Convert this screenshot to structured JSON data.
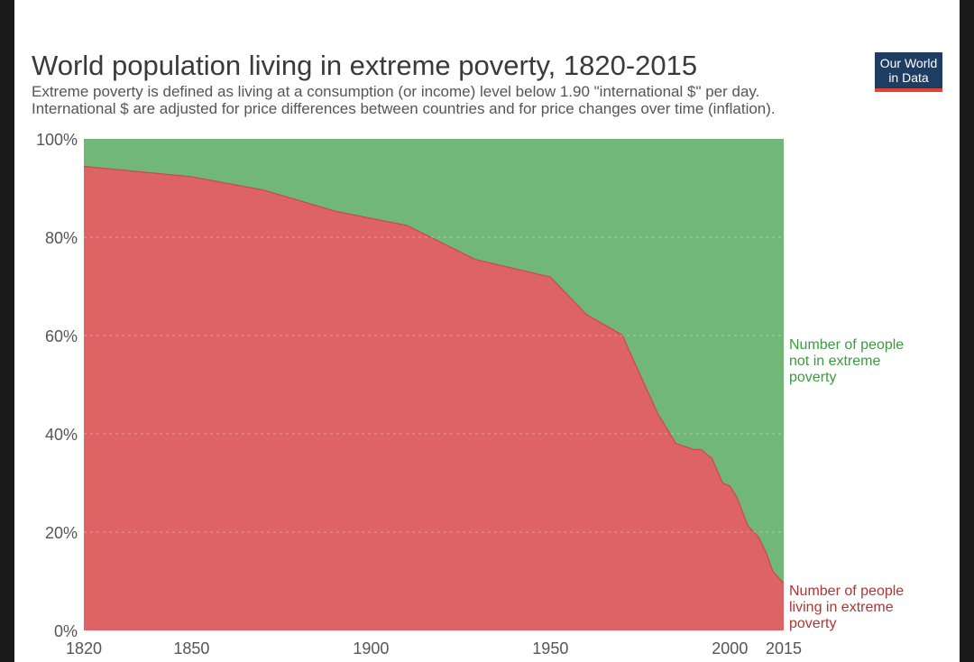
{
  "title": "World population living in extreme poverty, 1820-2015",
  "subtitle_line1": "Extreme poverty is defined as living at a consumption (or income) level below 1.90 \"international $\" per day.",
  "subtitle_line2": "International $ are adjusted for price differences between countries and for price changes over time (inflation).",
  "logo": {
    "line1": "Our World",
    "line2": "in Data"
  },
  "colors": {
    "poverty": "#dd6364",
    "poverty_line": "#c94a4a",
    "not_poverty": "#71b878",
    "not_poverty_label": "#3c9a3f",
    "poverty_label": "#b23432",
    "logo_bg": "#1d3d63",
    "logo_accent": "#e0433b"
  },
  "chart_data": {
    "type": "area",
    "stacked": true,
    "title": "World population living in extreme poverty, 1820-2015",
    "xlim": [
      1820,
      2015
    ],
    "ylim": [
      0,
      100
    ],
    "x_ticks": [
      1820,
      1850,
      1900,
      1950,
      2000,
      2015
    ],
    "y_ticks": [
      0,
      20,
      40,
      60,
      80,
      100
    ],
    "y_tick_labels": [
      "0%",
      "20%",
      "40%",
      "60%",
      "80%",
      "100%"
    ],
    "x": [
      1820,
      1850,
      1870,
      1890,
      1910,
      1929,
      1950,
      1960,
      1970,
      1975,
      1980,
      1985,
      1990,
      1992,
      1995,
      1998,
      2000,
      2002,
      2005,
      2008,
      2010,
      2012,
      2015
    ],
    "series": [
      {
        "name": "Number of people living in extreme poverty",
        "label_lines": [
          "Number of people",
          "living in extreme",
          "poverty"
        ],
        "values": [
          94.4,
          92.3,
          89.6,
          85.3,
          82.4,
          75.5,
          71.9,
          64.3,
          60.1,
          52.0,
          44.0,
          38.0,
          36.8,
          36.8,
          35.0,
          30.0,
          29.4,
          27.0,
          21.3,
          19.0,
          16.0,
          12.0,
          9.6
        ]
      },
      {
        "name": "Number of people not in extreme poverty",
        "label_lines": [
          "Number of people",
          "not in extreme",
          "poverty"
        ],
        "values": [
          5.6,
          7.7,
          10.4,
          14.7,
          17.6,
          24.5,
          28.1,
          35.7,
          39.9,
          48.0,
          56.0,
          62.0,
          63.2,
          63.2,
          65.0,
          70.0,
          70.6,
          73.0,
          78.7,
          81.0,
          84.0,
          88.0,
          90.4
        ]
      }
    ],
    "legend": "right"
  }
}
